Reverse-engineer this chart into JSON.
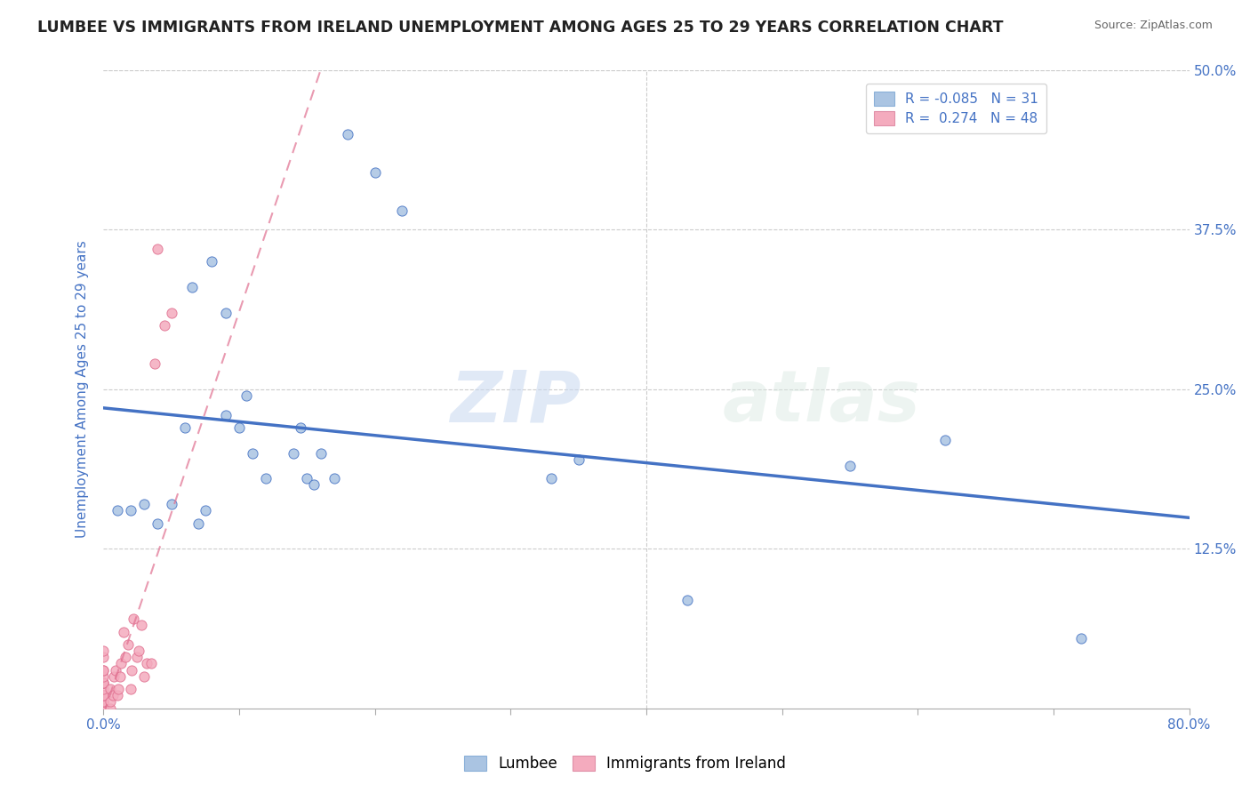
{
  "title": "LUMBEE VS IMMIGRANTS FROM IRELAND UNEMPLOYMENT AMONG AGES 25 TO 29 YEARS CORRELATION CHART",
  "source_text": "Source: ZipAtlas.com",
  "ylabel": "Unemployment Among Ages 25 to 29 years",
  "legend_label1": "Lumbee",
  "legend_label2": "Immigrants from Ireland",
  "R1": -0.085,
  "N1": 31,
  "R2": 0.274,
  "N2": 48,
  "color1": "#aac4e2",
  "color2": "#f4abbe",
  "trend_color1": "#4472c4",
  "trend_color2": "#e07090",
  "xlim": [
    0,
    0.8
  ],
  "ylim": [
    0,
    0.5
  ],
  "watermark_zip": "ZIP",
  "watermark_atlas": "atlas",
  "lumbee_x": [
    0.01,
    0.02,
    0.03,
    0.04,
    0.05,
    0.06,
    0.065,
    0.07,
    0.075,
    0.08,
    0.09,
    0.09,
    0.1,
    0.105,
    0.11,
    0.12,
    0.14,
    0.145,
    0.15,
    0.155,
    0.16,
    0.17,
    0.18,
    0.2,
    0.22,
    0.33,
    0.35,
    0.43,
    0.55,
    0.62,
    0.72
  ],
  "lumbee_y": [
    0.155,
    0.155,
    0.16,
    0.145,
    0.16,
    0.22,
    0.33,
    0.145,
    0.155,
    0.35,
    0.23,
    0.31,
    0.22,
    0.245,
    0.2,
    0.18,
    0.2,
    0.22,
    0.18,
    0.175,
    0.2,
    0.18,
    0.45,
    0.42,
    0.39,
    0.18,
    0.195,
    0.085,
    0.19,
    0.21,
    0.055
  ],
  "ireland_x": [
    0.0,
    0.0,
    0.0,
    0.0,
    0.0,
    0.0,
    0.0,
    0.0,
    0.0,
    0.0,
    0.0,
    0.0,
    0.0,
    0.0,
    0.0,
    0.0,
    0.0,
    0.0,
    0.0,
    0.0,
    0.0,
    0.0,
    0.005,
    0.005,
    0.005,
    0.007,
    0.008,
    0.009,
    0.01,
    0.011,
    0.012,
    0.013,
    0.015,
    0.016,
    0.018,
    0.02,
    0.021,
    0.022,
    0.025,
    0.026,
    0.028,
    0.03,
    0.032,
    0.035,
    0.038,
    0.04,
    0.045,
    0.05
  ],
  "ireland_y": [
    0.0,
    0.0,
    0.0,
    0.0,
    0.0,
    0.0,
    0.0,
    0.005,
    0.005,
    0.005,
    0.01,
    0.01,
    0.01,
    0.015,
    0.02,
    0.02,
    0.02,
    0.025,
    0.03,
    0.03,
    0.04,
    0.045,
    0.0,
    0.005,
    0.015,
    0.01,
    0.025,
    0.03,
    0.01,
    0.015,
    0.025,
    0.035,
    0.06,
    0.04,
    0.05,
    0.015,
    0.03,
    0.07,
    0.04,
    0.045,
    0.065,
    0.025,
    0.035,
    0.035,
    0.27,
    0.36,
    0.3,
    0.31
  ],
  "ireland_trend_x0": 0.0,
  "ireland_trend_x1": 0.16,
  "ireland_trend_y0": -0.005,
  "ireland_trend_y1": 0.5
}
